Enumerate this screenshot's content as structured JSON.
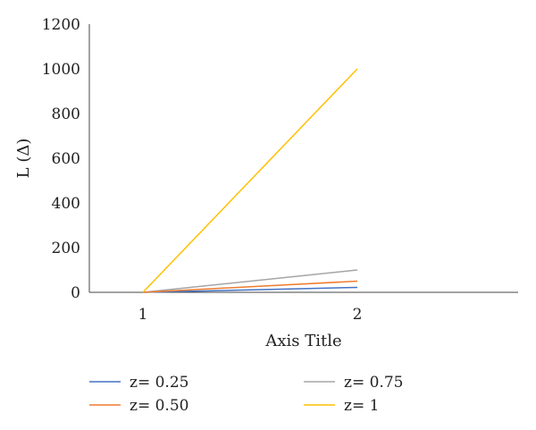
{
  "chart_data": {
    "type": "line",
    "categories": [
      "1",
      "2"
    ],
    "ylim": [
      0,
      1200
    ],
    "yticks": [
      "0",
      "200",
      "400",
      "600",
      "800",
      "1000",
      "1200"
    ],
    "xlabel": "Axis Title",
    "ylabel": "L (Δ)",
    "grid": false,
    "legend": "bottom",
    "series": [
      {
        "name": "z= 0.25",
        "values": [
          0,
          22
        ],
        "color": "#4472c4"
      },
      {
        "name": "z= 0.75",
        "values": [
          0,
          100
        ],
        "color": "#a5a5a5"
      },
      {
        "name": "z= 0.50",
        "values": [
          0,
          50
        ],
        "color": "#ed7d31"
      },
      {
        "name": "z= 1",
        "values": [
          0,
          1000
        ],
        "color": "#ffc000"
      }
    ]
  }
}
